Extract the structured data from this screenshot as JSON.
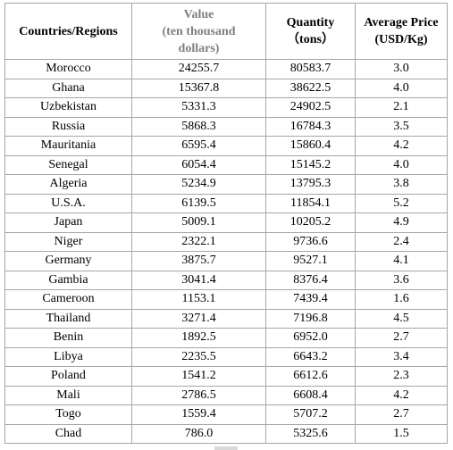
{
  "table": {
    "headers": {
      "country": "Countries/Regions",
      "value_line1": "Value",
      "value_line2": "(ten thousand",
      "value_line3": "dollars)",
      "quantity_line1": "Quantity",
      "quantity_line2": "（tons）",
      "price_line1": "Average Price",
      "price_line2": "(USD/Kg)"
    },
    "header_value_color": "#7f7f7f",
    "rows": [
      [
        "Morocco",
        "24255.7",
        "80583.7",
        "3.0"
      ],
      [
        "Ghana",
        "15367.8",
        "38622.5",
        "4.0"
      ],
      [
        "Uzbekistan",
        "5331.3",
        "24902.5",
        "2.1"
      ],
      [
        "Russia",
        "5868.3",
        "16784.3",
        "3.5"
      ],
      [
        "Mauritania",
        "6595.4",
        "15860.4",
        "4.2"
      ],
      [
        "Senegal",
        "6054.4",
        "15145.2",
        "4.0"
      ],
      [
        "Algeria",
        "5234.9",
        "13795.3",
        "3.8"
      ],
      [
        "U.S.A.",
        "6139.5",
        "11854.1",
        "5.2"
      ],
      [
        "Japan",
        "5009.1",
        "10205.2",
        "4.9"
      ],
      [
        "Niger",
        "2322.1",
        "9736.6",
        "2.4"
      ],
      [
        "Germany",
        "3875.7",
        "9527.1",
        "4.1"
      ],
      [
        "Gambia",
        "3041.4",
        "8376.4",
        "3.6"
      ],
      [
        "Cameroon",
        "1153.1",
        "7439.4",
        "1.6"
      ],
      [
        "Thailand",
        "3271.4",
        "7196.8",
        "4.5"
      ],
      [
        "Benin",
        "1892.5",
        "6952.0",
        "2.7"
      ],
      [
        "Libya",
        "2235.5",
        "6643.2",
        "3.4"
      ],
      [
        "Poland",
        "1541.2",
        "6612.6",
        "2.3"
      ],
      [
        "Mali",
        "2786.5",
        "6608.4",
        "4.2"
      ],
      [
        "Togo",
        "1559.4",
        "5707.2",
        "2.7"
      ],
      [
        "Chad",
        "786.0",
        "5325.6",
        "1.5"
      ]
    ]
  }
}
